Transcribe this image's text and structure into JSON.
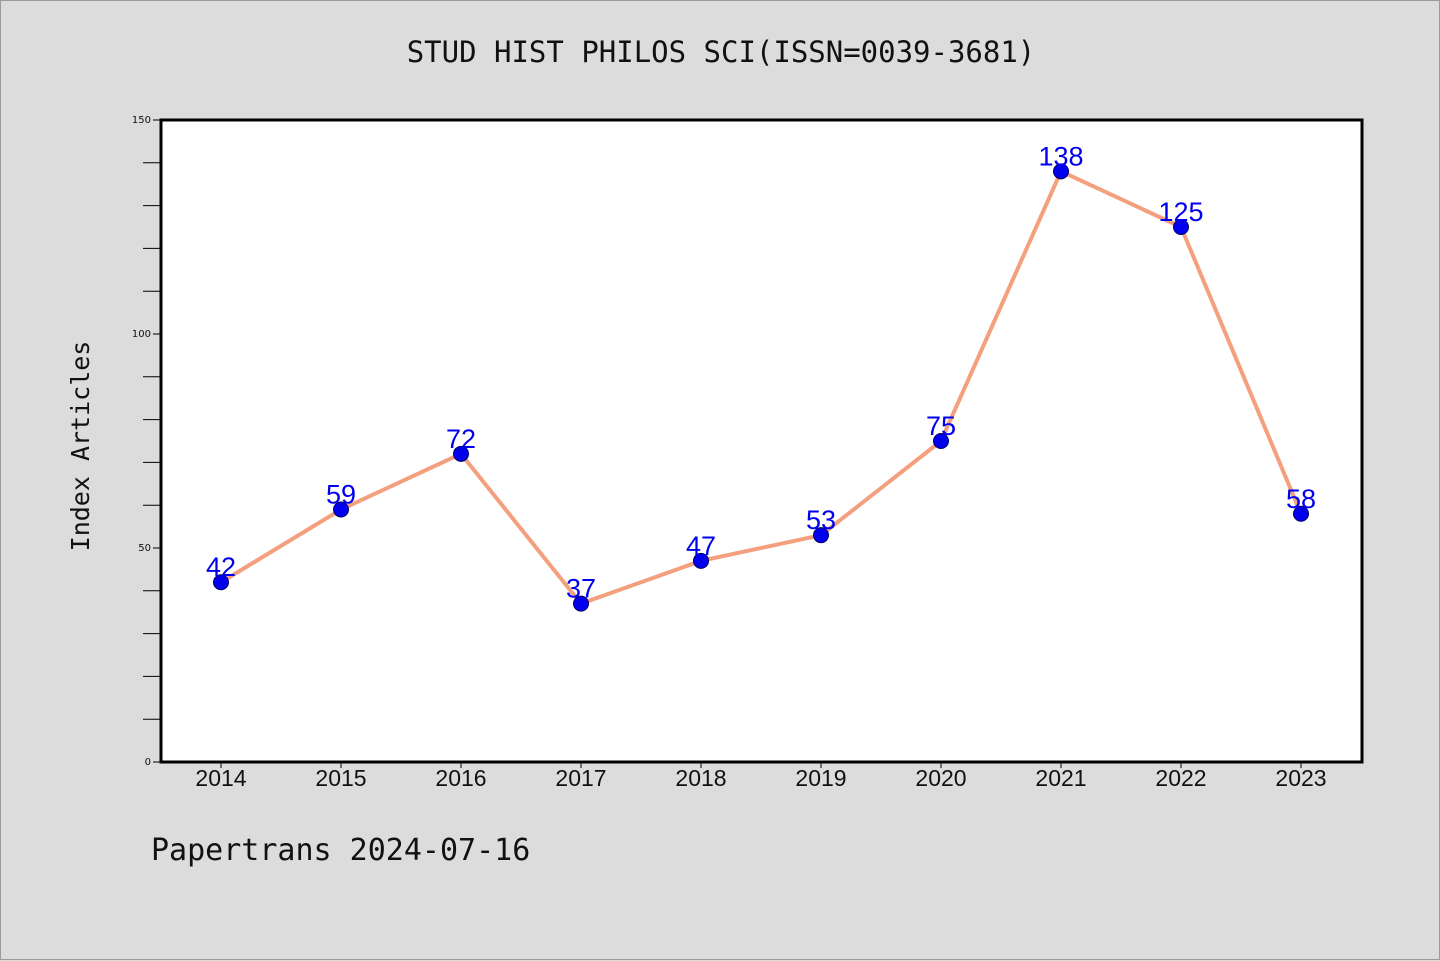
{
  "footer": {
    "credit": "Papertrans 2024-07-16"
  },
  "chart_data": {
    "type": "line",
    "title": "STUD HIST PHILOS SCI(ISSN=0039-3681)",
    "xlabel": "",
    "ylabel": "Index Articles",
    "categories": [
      "2014",
      "2015",
      "2016",
      "2017",
      "2018",
      "2019",
      "2020",
      "2021",
      "2022",
      "2023"
    ],
    "series": [
      {
        "values": [
          42,
          59,
          72,
          37,
          47,
          53,
          75,
          138,
          125,
          58
        ]
      }
    ],
    "ylim": [
      0,
      150
    ],
    "yticks": [
      0,
      50,
      100,
      150
    ],
    "grid": false,
    "line_color": "#f4a07f",
    "marker_color": "#0000ee",
    "label_color": "#0000ee"
  }
}
